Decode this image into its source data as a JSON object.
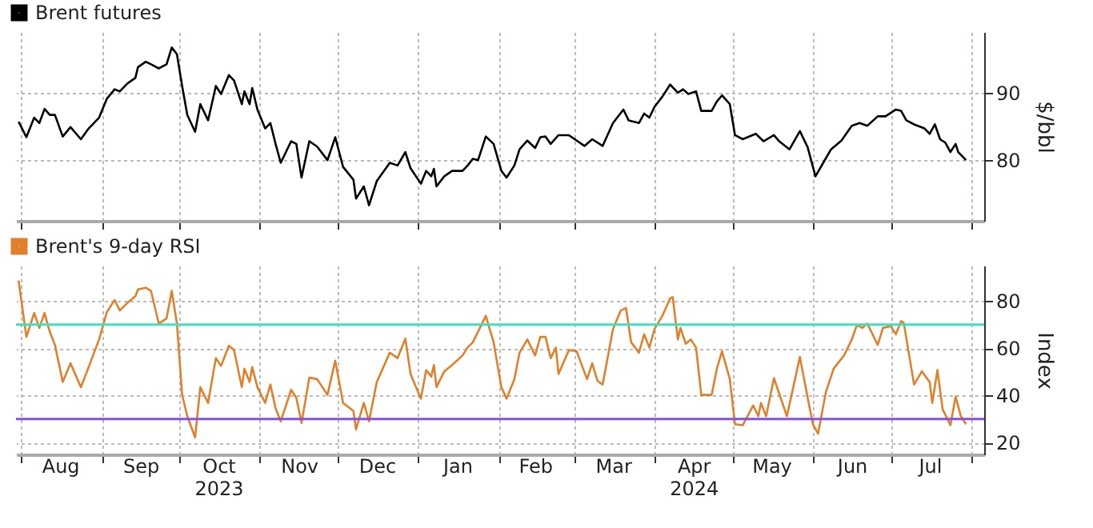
{
  "chart_data": [
    {
      "type": "line",
      "ylabel": "$/bbl",
      "legend": "top left",
      "grid": true,
      "tick_labels": "y",
      "line_style": "solid",
      "xlim": [
        "2023-07-30",
        "2024-08-06"
      ],
      "ylim": [
        71,
        99
      ],
      "yticks": [
        80,
        90
      ],
      "xticks": [
        {
          "value": "2023-08-01",
          "label": null
        },
        {
          "value": "2023-09-01",
          "label": null
        },
        {
          "value": "2023-10-01",
          "label": null
        },
        {
          "value": "2023-11-01",
          "label": null
        },
        {
          "value": "2023-12-01",
          "label": null
        },
        {
          "value": "2024-01-01",
          "label": null
        },
        {
          "value": "2024-02-01",
          "label": null
        },
        {
          "value": "2024-03-01",
          "label": null
        },
        {
          "value": "2024-04-01",
          "label": null
        },
        {
          "value": "2024-05-01",
          "label": null
        },
        {
          "value": "2024-06-01",
          "label": null
        },
        {
          "value": "2024-07-01",
          "label": null
        },
        {
          "value": "2024-08-01",
          "label": null
        }
      ],
      "x": [
        "2023-07-31",
        "2023-08-03",
        "2023-08-06",
        "2023-08-08",
        "2023-08-10",
        "2023-08-12",
        "2023-08-14",
        "2023-08-17",
        "2023-08-20",
        "2023-08-24",
        "2023-08-27",
        "2023-08-31",
        "2023-09-03",
        "2023-09-06",
        "2023-09-08",
        "2023-09-11",
        "2023-09-14",
        "2023-09-15",
        "2023-09-18",
        "2023-09-20",
        "2023-09-23",
        "2023-09-26",
        "2023-09-28",
        "2023-09-30",
        "2023-10-02",
        "2023-10-04",
        "2023-10-07",
        "2023-10-09",
        "2023-10-12",
        "2023-10-15",
        "2023-10-17",
        "2023-10-20",
        "2023-10-22",
        "2023-10-25",
        "2023-10-26",
        "2023-10-28",
        "2023-10-29",
        "2023-10-31",
        "2023-11-03",
        "2023-11-05",
        "2023-11-07",
        "2023-11-09",
        "2023-11-13",
        "2023-11-15",
        "2023-11-17",
        "2023-11-20",
        "2023-11-23",
        "2023-11-27",
        "2023-11-30",
        "2023-12-03",
        "2023-12-07",
        "2023-12-08",
        "2023-12-11",
        "2023-12-13",
        "2023-12-16",
        "2023-12-21",
        "2023-12-24",
        "2023-12-27",
        "2023-12-29",
        "2024-01-02",
        "2024-01-04",
        "2024-01-06",
        "2024-01-07",
        "2024-01-08",
        "2024-01-11",
        "2024-01-14",
        "2024-01-18",
        "2024-01-20",
        "2024-01-22",
        "2024-01-24",
        "2024-01-27",
        "2024-01-30",
        "2024-02-02",
        "2024-02-04",
        "2024-02-07",
        "2024-02-09",
        "2024-02-12",
        "2024-02-15",
        "2024-02-17",
        "2024-02-19",
        "2024-02-21",
        "2024-02-24",
        "2024-02-28",
        "2024-03-05",
        "2024-03-08",
        "2024-03-12",
        "2024-03-16",
        "2024-03-20",
        "2024-03-22",
        "2024-03-26",
        "2024-03-28",
        "2024-03-30",
        "2024-04-01",
        "2024-04-04",
        "2024-04-07",
        "2024-04-10",
        "2024-04-12",
        "2024-04-14",
        "2024-04-17",
        "2024-04-19",
        "2024-04-23",
        "2024-04-25",
        "2024-04-27",
        "2024-04-30",
        "2024-05-02",
        "2024-05-05",
        "2024-05-10",
        "2024-05-13",
        "2024-05-17",
        "2024-05-19",
        "2024-05-23",
        "2024-05-27",
        "2024-05-30",
        "2024-06-02",
        "2024-06-05",
        "2024-06-08",
        "2024-06-12",
        "2024-06-16",
        "2024-06-19",
        "2024-06-22",
        "2024-06-26",
        "2024-06-29",
        "2024-07-03",
        "2024-07-05",
        "2024-07-07",
        "2024-07-10",
        "2024-07-14",
        "2024-07-16",
        "2024-07-18",
        "2024-07-20",
        "2024-07-22",
        "2024-07-24",
        "2024-07-26",
        "2024-07-27",
        "2024-07-30"
      ],
      "series": [
        {
          "name": "Brent futures",
          "color": "#000000",
          "values": [
            85.7,
            83.4,
            86.3,
            85.5,
            87.6,
            86.7,
            86.7,
            83.5,
            84.9,
            83.1,
            84.7,
            86.3,
            89.1,
            90.5,
            90.2,
            91.4,
            92.2,
            93.8,
            94.6,
            94.2,
            93.6,
            94.2,
            96.7,
            95.7,
            91.0,
            86.7,
            84.2,
            88.3,
            85.9,
            91.0,
            89.8,
            92.6,
            91.8,
            88.3,
            90.2,
            88.3,
            90.7,
            87.5,
            84.7,
            85.5,
            82.4,
            79.6,
            82.8,
            82.4,
            77.4,
            82.8,
            82.0,
            80.0,
            83.4,
            79.0,
            77.1,
            74.3,
            76.1,
            73.3,
            76.9,
            79.6,
            79.2,
            81.2,
            78.8,
            76.5,
            78.4,
            77.6,
            78.7,
            76.1,
            77.6,
            78.4,
            78.4,
            79.2,
            80.2,
            80.0,
            83.5,
            82.4,
            78.4,
            77.4,
            79.2,
            81.6,
            82.9,
            81.8,
            83.4,
            83.5,
            82.4,
            83.7,
            83.7,
            82.1,
            83.1,
            82.1,
            85.5,
            87.5,
            85.9,
            85.5,
            86.9,
            86.3,
            87.9,
            89.4,
            91.2,
            90.0,
            90.5,
            89.8,
            90.2,
            87.3,
            87.3,
            88.7,
            89.6,
            88.3,
            83.7,
            83.1,
            83.9,
            82.8,
            83.7,
            82.8,
            81.6,
            84.3,
            81.9,
            77.6,
            79.6,
            81.6,
            82.9,
            85.1,
            85.5,
            85.1,
            86.5,
            86.5,
            87.5,
            87.3,
            85.9,
            85.3,
            84.7,
            83.9,
            85.3,
            83.1,
            82.6,
            81.2,
            82.4,
            81.2,
            80.0
          ]
        }
      ]
    },
    {
      "type": "line",
      "ylabel": "Index",
      "legend": "top left",
      "grid": true,
      "line_style": "solid",
      "xlim": [
        "2023-07-30",
        "2024-08-06"
      ],
      "ylim": [
        15,
        95
      ],
      "yticks": [
        20,
        40,
        60,
        80
      ],
      "xticks": [
        {
          "value": "2023-08-01",
          "label": null
        },
        {
          "value": "2023-08-16",
          "label": "Aug"
        },
        {
          "value": "2023-09-01",
          "label": null
        },
        {
          "value": "2023-09-16",
          "label": "Sep"
        },
        {
          "value": "2023-10-01",
          "label": null
        },
        {
          "value": "2023-10-16",
          "label": "Oct 2023"
        },
        {
          "value": "2023-11-01",
          "label": null
        },
        {
          "value": "2023-11-16",
          "label": "Nov"
        },
        {
          "value": "2023-12-01",
          "label": null
        },
        {
          "value": "2023-12-16",
          "label": "Dec"
        },
        {
          "value": "2024-01-01",
          "label": null
        },
        {
          "value": "2024-01-16",
          "label": "Jan"
        },
        {
          "value": "2024-02-01",
          "label": null
        },
        {
          "value": "2024-02-15",
          "label": "Feb"
        },
        {
          "value": "2024-03-01",
          "label": null
        },
        {
          "value": "2024-03-16",
          "label": "Mar"
        },
        {
          "value": "2024-04-01",
          "label": null
        },
        {
          "value": "2024-04-16",
          "label": "Apr 2024"
        },
        {
          "value": "2024-05-01",
          "label": null
        },
        {
          "value": "2024-05-16",
          "label": "May"
        },
        {
          "value": "2024-06-01",
          "label": null
        },
        {
          "value": "2024-06-16",
          "label": "Jun"
        },
        {
          "value": "2024-07-01",
          "label": null
        },
        {
          "value": "2024-07-16",
          "label": "Jul"
        },
        {
          "value": "2024-08-01",
          "label": null
        }
      ],
      "ref_lines": [
        {
          "axis": "y",
          "value": 70,
          "color": "#3fe0c0"
        },
        {
          "axis": "y",
          "value": 30,
          "color": "#8a4fe0"
        }
      ],
      "x": [
        "2023-07-31",
        "2023-08-03",
        "2023-08-06",
        "2023-08-08",
        "2023-08-10",
        "2023-08-12",
        "2023-08-14",
        "2023-08-17",
        "2023-08-20",
        "2023-08-24",
        "2023-08-27",
        "2023-08-31",
        "2023-09-03",
        "2023-09-06",
        "2023-09-08",
        "2023-09-11",
        "2023-09-14",
        "2023-09-15",
        "2023-09-18",
        "2023-09-20",
        "2023-09-23",
        "2023-09-26",
        "2023-09-28",
        "2023-09-30",
        "2023-10-02",
        "2023-10-04",
        "2023-10-07",
        "2023-10-09",
        "2023-10-12",
        "2023-10-15",
        "2023-10-17",
        "2023-10-20",
        "2023-10-22",
        "2023-10-25",
        "2023-10-26",
        "2023-10-28",
        "2023-10-29",
        "2023-10-31",
        "2023-11-03",
        "2023-11-05",
        "2023-11-07",
        "2023-11-09",
        "2023-11-13",
        "2023-11-15",
        "2023-11-17",
        "2023-11-20",
        "2023-11-23",
        "2023-11-27",
        "2023-11-30",
        "2023-12-03",
        "2023-12-07",
        "2023-12-08",
        "2023-12-11",
        "2023-12-13",
        "2023-12-16",
        "2023-12-21",
        "2023-12-24",
        "2023-12-27",
        "2023-12-29",
        "2024-01-02",
        "2024-01-04",
        "2024-01-06",
        "2024-01-07",
        "2024-01-08",
        "2024-01-11",
        "2024-01-14",
        "2024-01-18",
        "2024-01-20",
        "2024-01-22",
        "2024-01-24",
        "2024-01-27",
        "2024-01-30",
        "2024-02-02",
        "2024-02-04",
        "2024-02-07",
        "2024-02-09",
        "2024-02-12",
        "2024-02-15",
        "2024-02-17",
        "2024-02-19",
        "2024-02-21",
        "2024-02-23",
        "2024-02-24",
        "2024-02-28",
        "2024-03-02",
        "2024-03-06",
        "2024-03-08",
        "2024-03-10",
        "2024-03-12",
        "2024-03-16",
        "2024-03-19",
        "2024-03-21",
        "2024-03-23",
        "2024-03-26",
        "2024-03-28",
        "2024-03-30",
        "2024-04-01",
        "2024-04-04",
        "2024-04-07",
        "2024-04-08",
        "2024-04-10",
        "2024-04-11",
        "2024-04-13",
        "2024-04-15",
        "2024-04-17",
        "2024-04-19",
        "2024-04-23",
        "2024-04-25",
        "2024-04-27",
        "2024-04-30",
        "2024-05-02",
        "2024-05-05",
        "2024-05-09",
        "2024-05-11",
        "2024-05-12",
        "2024-05-14",
        "2024-05-17",
        "2024-05-22",
        "2024-05-27",
        "2024-05-30",
        "2024-06-01",
        "2024-06-03",
        "2024-06-06",
        "2024-06-09",
        "2024-06-13",
        "2024-06-16",
        "2024-06-18",
        "2024-06-20",
        "2024-06-22",
        "2024-06-26",
        "2024-06-28",
        "2024-07-01",
        "2024-07-03",
        "2024-07-05",
        "2024-07-06",
        "2024-07-10",
        "2024-07-13",
        "2024-07-16",
        "2024-07-17",
        "2024-07-19",
        "2024-07-21",
        "2024-07-24",
        "2024-07-26",
        "2024-07-28",
        "2024-07-30"
      ],
      "series": [
        {
          "name": "Brent's 9-day RSI",
          "color": "#e0802a",
          "values": [
            88.7,
            64.8,
            74.9,
            68.6,
            74.9,
            67.0,
            61.4,
            45.7,
            53.6,
            43.5,
            52.0,
            63.7,
            75.3,
            80.4,
            76.0,
            79.3,
            82.0,
            84.9,
            85.6,
            84.3,
            70.4,
            72.6,
            84.3,
            70.4,
            40.2,
            31.2,
            22.2,
            43.5,
            36.8,
            55.8,
            52.5,
            61.0,
            59.2,
            43.5,
            51.3,
            45.7,
            52.0,
            43.5,
            36.8,
            44.6,
            34.6,
            29.0,
            42.4,
            39.0,
            28.3,
            47.5,
            46.9,
            40.2,
            54.7,
            36.8,
            33.4,
            25.6,
            36.8,
            29.0,
            45.7,
            58.1,
            55.8,
            64.1,
            49.1,
            38.6,
            50.7,
            48.0,
            52.9,
            43.5,
            50.2,
            52.9,
            56.9,
            60.3,
            62.5,
            67.0,
            73.7,
            62.5,
            43.5,
            38.6,
            46.9,
            58.1,
            63.7,
            56.9,
            64.8,
            64.8,
            55.8,
            60.3,
            49.1,
            59.2,
            58.7,
            46.9,
            53.6,
            46.2,
            44.6,
            68.1,
            76.0,
            77.1,
            62.5,
            58.1,
            65.9,
            60.3,
            68.1,
            73.7,
            81.1,
            81.6,
            63.7,
            68.6,
            61.9,
            63.7,
            60.3,
            40.2,
            40.2,
            51.3,
            58.7,
            46.9,
            27.8,
            27.4,
            35.7,
            31.2,
            36.8,
            31.2,
            47.3,
            31.2,
            56.3,
            39.0,
            27.8,
            23.8,
            41.3,
            51.3,
            56.9,
            63.7,
            69.9,
            68.6,
            70.4,
            61.4,
            68.6,
            69.3,
            65.9,
            71.5,
            70.8,
            44.6,
            50.2,
            45.7,
            36.8,
            50.7,
            34.1,
            27.4,
            39.5,
            31.2,
            27.8
          ]
        }
      ]
    }
  ]
}
